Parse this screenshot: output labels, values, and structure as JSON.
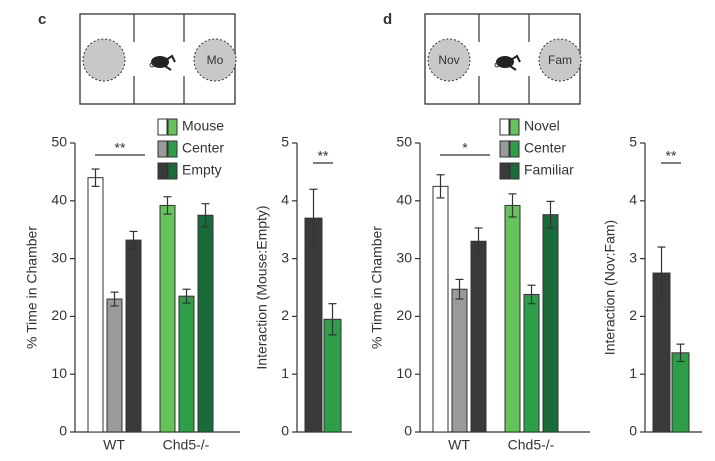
{
  "panel_labels": [
    "c",
    "d"
  ],
  "diagram_labels": [
    "Mo",
    "Nov",
    "Fam"
  ],
  "chart_data": [
    {
      "type": "grouped-bar",
      "ylabel": "% Time in Chamber",
      "categories": [
        "WT",
        "Chd5-/-"
      ],
      "series": [
        {
          "name": "Mouse",
          "colors": [
            "#ffffff",
            "#66c25a"
          ],
          "values": [
            44,
            39.2
          ],
          "errors": [
            1.5,
            1.5
          ]
        },
        {
          "name": "Center",
          "colors": [
            "#9a9a9a",
            "#2e9e48"
          ],
          "values": [
            23,
            23.5
          ],
          "errors": [
            1.2,
            1.2
          ]
        },
        {
          "name": "Empty",
          "colors": [
            "#3a3a3a",
            "#1a6b3a"
          ],
          "values": [
            33.2,
            37.5
          ],
          "errors": [
            1.5,
            2
          ]
        }
      ],
      "ylim": [
        0,
        50
      ],
      "yticks": [
        0,
        10,
        20,
        30,
        40,
        50
      ],
      "annotation": "**"
    },
    {
      "type": "bar",
      "ylabel": "Interaction (Mouse:Empty)",
      "categories": [
        null,
        null
      ],
      "values": [
        3.7,
        1.95
      ],
      "errors": [
        0.5,
        0.27
      ],
      "colors": [
        "#3a3a3a",
        "#2e9e48"
      ],
      "ylim": [
        0,
        5
      ],
      "yticks": [
        0,
        1,
        2,
        3,
        4,
        5
      ],
      "annotation": "**"
    },
    {
      "type": "grouped-bar",
      "ylabel": "% Time in Chamber",
      "categories": [
        "WT",
        "Chd5-/-"
      ],
      "series": [
        {
          "name": "Novel",
          "colors": [
            "#ffffff",
            "#66c25a"
          ],
          "values": [
            42.5,
            39.2
          ],
          "errors": [
            2,
            2
          ]
        },
        {
          "name": "Center",
          "colors": [
            "#9a9a9a",
            "#2e9e48"
          ],
          "values": [
            24.7,
            23.8
          ],
          "errors": [
            1.7,
            1.6
          ]
        },
        {
          "name": "Familiar",
          "colors": [
            "#3a3a3a",
            "#1a6b3a"
          ],
          "values": [
            33,
            37.6
          ],
          "errors": [
            2.3,
            2.3
          ]
        }
      ],
      "ylim": [
        0,
        50
      ],
      "yticks": [
        0,
        10,
        20,
        30,
        40,
        50
      ],
      "annotation": "*"
    },
    {
      "type": "bar",
      "ylabel": "Interaction (Nov:Fam)",
      "categories": [
        null,
        null
      ],
      "values": [
        2.75,
        1.37
      ],
      "errors": [
        0.45,
        0.15
      ],
      "colors": [
        "#3a3a3a",
        "#2e9e48"
      ],
      "ylim": [
        0,
        5
      ],
      "yticks": [
        0,
        1,
        2,
        3,
        4,
        5
      ],
      "annotation": "**"
    }
  ]
}
